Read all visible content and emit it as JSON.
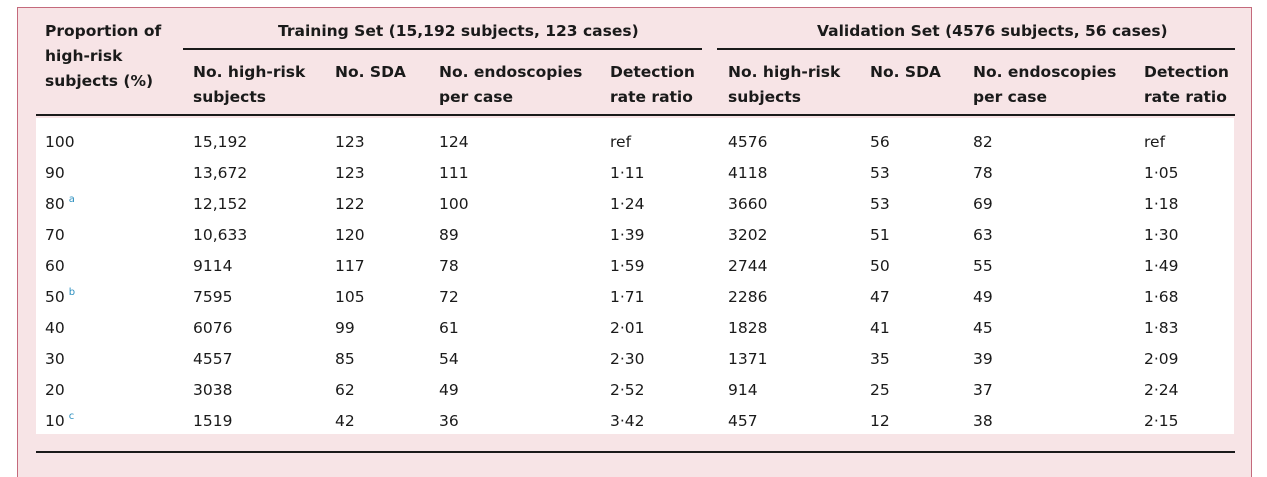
{
  "header": {
    "proportion": [
      "Proportion of",
      "high-risk",
      "subjects (%)"
    ],
    "training_title": "Training Set (15,192 subjects, 123 cases)",
    "validation_title": "Validation Set (4576 subjects, 56 cases)",
    "columns": {
      "high_risk": [
        "No. high-risk",
        "subjects"
      ],
      "sda": [
        "No. SDA",
        ""
      ],
      "endoscopies": [
        "No. endoscopies",
        "per case"
      ],
      "ratio": [
        "Detection",
        "rate ratio"
      ]
    }
  },
  "rows": [
    {
      "prop": "100",
      "sup": "",
      "t": [
        "15,192",
        "123",
        "124",
        "ref"
      ],
      "v": [
        "4576",
        "56",
        "82",
        "ref"
      ]
    },
    {
      "prop": "90",
      "sup": "",
      "t": [
        "13,672",
        "123",
        "111",
        "1·11"
      ],
      "v": [
        "4118",
        "53",
        "78",
        "1·05"
      ]
    },
    {
      "prop": "80",
      "sup": "a",
      "t": [
        "12,152",
        "122",
        "100",
        "1·24"
      ],
      "v": [
        "3660",
        "53",
        "69",
        "1·18"
      ]
    },
    {
      "prop": "70",
      "sup": "",
      "t": [
        "10,633",
        "120",
        "89",
        "1·39"
      ],
      "v": [
        "3202",
        "51",
        "63",
        "1·30"
      ]
    },
    {
      "prop": "60",
      "sup": "",
      "t": [
        "9114",
        "117",
        "78",
        "1·59"
      ],
      "v": [
        "2744",
        "50",
        "55",
        "1·49"
      ]
    },
    {
      "prop": "50",
      "sup": "b",
      "t": [
        "7595",
        "105",
        "72",
        "1·71"
      ],
      "v": [
        "2286",
        "47",
        "49",
        "1·68"
      ]
    },
    {
      "prop": "40",
      "sup": "",
      "t": [
        "6076",
        "99",
        "61",
        "2·01"
      ],
      "v": [
        "1828",
        "41",
        "45",
        "1·83"
      ]
    },
    {
      "prop": "30",
      "sup": "",
      "t": [
        "4557",
        "85",
        "54",
        "2·30"
      ],
      "v": [
        "1371",
        "35",
        "39",
        "2·09"
      ]
    },
    {
      "prop": "20",
      "sup": "",
      "t": [
        "3038",
        "62",
        "49",
        "2·52"
      ],
      "v": [
        "914",
        "25",
        "37",
        "2·24"
      ]
    },
    {
      "prop": "10",
      "sup": "c",
      "t": [
        "1519",
        "42",
        "36",
        "3·42"
      ],
      "v": [
        "457",
        "12",
        "38",
        "2·15"
      ]
    }
  ]
}
